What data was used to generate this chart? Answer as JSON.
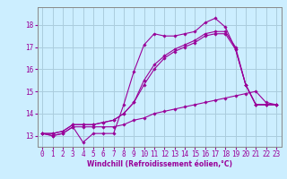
{
  "title": "",
  "xlabel": "Windchill (Refroidissement éolien,°C)",
  "ylabel": "",
  "bg_color": "#cceeff",
  "grid_color": "#aaccdd",
  "line_color": "#990099",
  "xlim": [
    -0.5,
    23.5
  ],
  "ylim": [
    12.5,
    18.8
  ],
  "xticks": [
    0,
    1,
    2,
    3,
    4,
    5,
    6,
    7,
    8,
    9,
    10,
    11,
    12,
    13,
    14,
    15,
    16,
    17,
    18,
    19,
    20,
    21,
    22,
    23
  ],
  "yticks": [
    13,
    14,
    15,
    16,
    17,
    18
  ],
  "lines": [
    [
      13.1,
      13.0,
      13.1,
      13.4,
      12.7,
      13.1,
      13.1,
      13.1,
      14.4,
      15.9,
      17.1,
      17.6,
      17.5,
      17.5,
      17.6,
      17.7,
      18.1,
      18.3,
      17.9,
      16.9,
      15.3,
      14.4,
      14.4,
      14.4
    ],
    [
      13.1,
      13.0,
      13.1,
      13.4,
      13.4,
      13.4,
      13.4,
      13.4,
      13.5,
      13.7,
      13.8,
      14.0,
      14.1,
      14.2,
      14.3,
      14.4,
      14.5,
      14.6,
      14.7,
      14.8,
      14.9,
      15.0,
      14.5,
      14.4
    ],
    [
      13.1,
      13.1,
      13.2,
      13.5,
      13.5,
      13.5,
      13.6,
      13.7,
      14.0,
      14.5,
      15.3,
      16.0,
      16.5,
      16.8,
      17.0,
      17.2,
      17.5,
      17.6,
      17.6,
      16.9,
      15.3,
      14.4,
      14.4,
      14.4
    ],
    [
      13.1,
      13.1,
      13.2,
      13.5,
      13.5,
      13.5,
      13.6,
      13.7,
      14.0,
      14.5,
      15.5,
      16.2,
      16.6,
      16.9,
      17.1,
      17.3,
      17.6,
      17.7,
      17.7,
      17.0,
      15.3,
      14.4,
      14.4,
      14.4
    ]
  ]
}
